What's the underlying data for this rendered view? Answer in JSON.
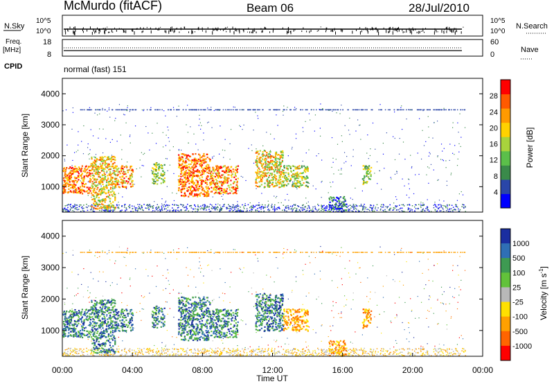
{
  "header": {
    "station": "McMurdo (fitACF)",
    "beam": "Beam 06",
    "date": "28/Jul/2010",
    "cpid_label": "CPID",
    "cpid_value": "normal (fast) 151"
  },
  "colors": {
    "power_scale": [
      "#0000ff",
      "#2a46a8",
      "#3a8a4a",
      "#5bbf4a",
      "#a8d43c",
      "#ffd200",
      "#ff9a00",
      "#ff5a00",
      "#ff0000"
    ],
    "velocity_scale": [
      "#1a2ea0",
      "#2f6fb5",
      "#3e9a52",
      "#62c23a",
      "#b8b8b8",
      "#ffe000",
      "#ffa000",
      "#ff6400",
      "#ff0000"
    ]
  },
  "chart_data": [
    {
      "type": "line",
      "panel": "noise / search",
      "left_label": "N.Sky",
      "right_label": "N.Search",
      "left_ticks": [
        "10^5",
        "10^0"
      ],
      "right_ticks": [
        "10^5",
        "10^0"
      ]
    },
    {
      "type": "line",
      "panel": "frequency / averages",
      "left_label": "Freq.",
      "left_unit": "[MHz]",
      "right_label": "Nave",
      "left_ticks": [
        "18",
        "8"
      ],
      "right_ticks": [
        "60",
        "0"
      ]
    },
    {
      "type": "heatmap",
      "quantity": "Power",
      "ylabel": "Slant Range [km]",
      "colorbar_label": "Power [dB]",
      "ylim": [
        180,
        4500
      ],
      "yticks": [
        1000,
        2000,
        3000,
        4000
      ],
      "colorbar_ticks": [
        "4",
        "8",
        "12",
        "16",
        "20",
        "24",
        "28"
      ],
      "xlim_hours": [
        0,
        24
      ]
    },
    {
      "type": "heatmap",
      "quantity": "Velocity",
      "ylabel": "Slant Range [km]",
      "colorbar_label": "Velocity [m s",
      "colorbar_exponent": "-1",
      "colorbar_label_end": "]",
      "ylim": [
        180,
        4500
      ],
      "yticks": [
        1000,
        2000,
        3000,
        4000
      ],
      "colorbar_ticks": [
        "1000",
        "500",
        "100",
        "25",
        "-25",
        "-100",
        "-500",
        "-1000"
      ],
      "xlim_hours": [
        0,
        24
      ],
      "xlabel": "Time UT",
      "xticks": [
        "00:00",
        "04:00",
        "08:00",
        "12:00",
        "16:00",
        "20:00",
        "00:00"
      ]
    }
  ]
}
